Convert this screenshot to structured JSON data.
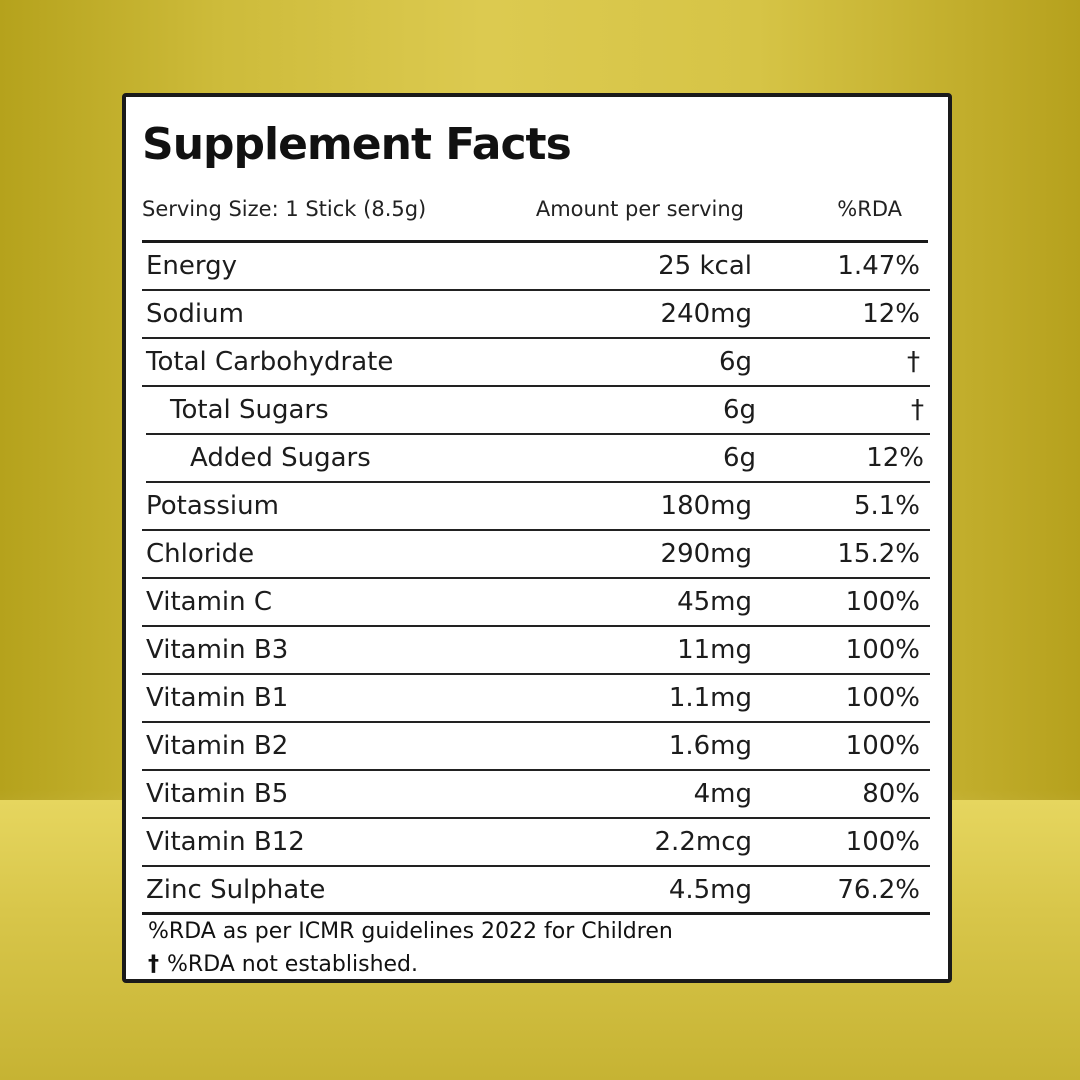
{
  "label": {
    "title": "Supplement Facts",
    "serving_size": "Serving Size: 1 Stick (8.5g)",
    "amount_header": "Amount per serving",
    "rda_header": "%RDA",
    "rows": [
      {
        "name": "Energy",
        "amount": "25 kcal",
        "rda": "1.47%",
        "indent": 0
      },
      {
        "name": "Sodium",
        "amount": "240mg",
        "rda": "12%",
        "indent": 0
      },
      {
        "name": "Total Carbohydrate",
        "amount": "6g",
        "rda": "†",
        "indent": 0
      },
      {
        "name": "Total Sugars",
        "amount": "6g",
        "rda": "†",
        "indent": 1
      },
      {
        "name": "Added Sugars",
        "amount": "6g",
        "rda": "12%",
        "indent": 2
      },
      {
        "name": "Potassium",
        "amount": "180mg",
        "rda": "5.1%",
        "indent": 0
      },
      {
        "name": "Chloride",
        "amount": "290mg",
        "rda": "15.2%",
        "indent": 0
      },
      {
        "name": "Vitamin C",
        "amount": "45mg",
        "rda": "100%",
        "indent": 0
      },
      {
        "name": "Vitamin B3",
        "amount": "11mg",
        "rda": "100%",
        "indent": 0
      },
      {
        "name": "Vitamin B1",
        "amount": "1.1mg",
        "rda": "100%",
        "indent": 0
      },
      {
        "name": "Vitamin B2",
        "amount": "1.6mg",
        "rda": "100%",
        "indent": 0
      },
      {
        "name": "Vitamin B5",
        "amount": "4mg",
        "rda": "80%",
        "indent": 0
      },
      {
        "name": "Vitamin B12",
        "amount": "2.2mcg",
        "rda": "100%",
        "indent": 0
      },
      {
        "name": "Zinc Sulphate",
        "amount": "4.5mg",
        "rda": "76.2%",
        "indent": 0
      }
    ],
    "footnote_1": "%RDA as per ICMR guidelines 2022 for Children",
    "footnote_2_symbol": "†",
    "footnote_2": "%RDA not established."
  },
  "colors": {
    "background": "#d6c446",
    "panel": "#ffffff",
    "ink": "#1a1a1a"
  }
}
